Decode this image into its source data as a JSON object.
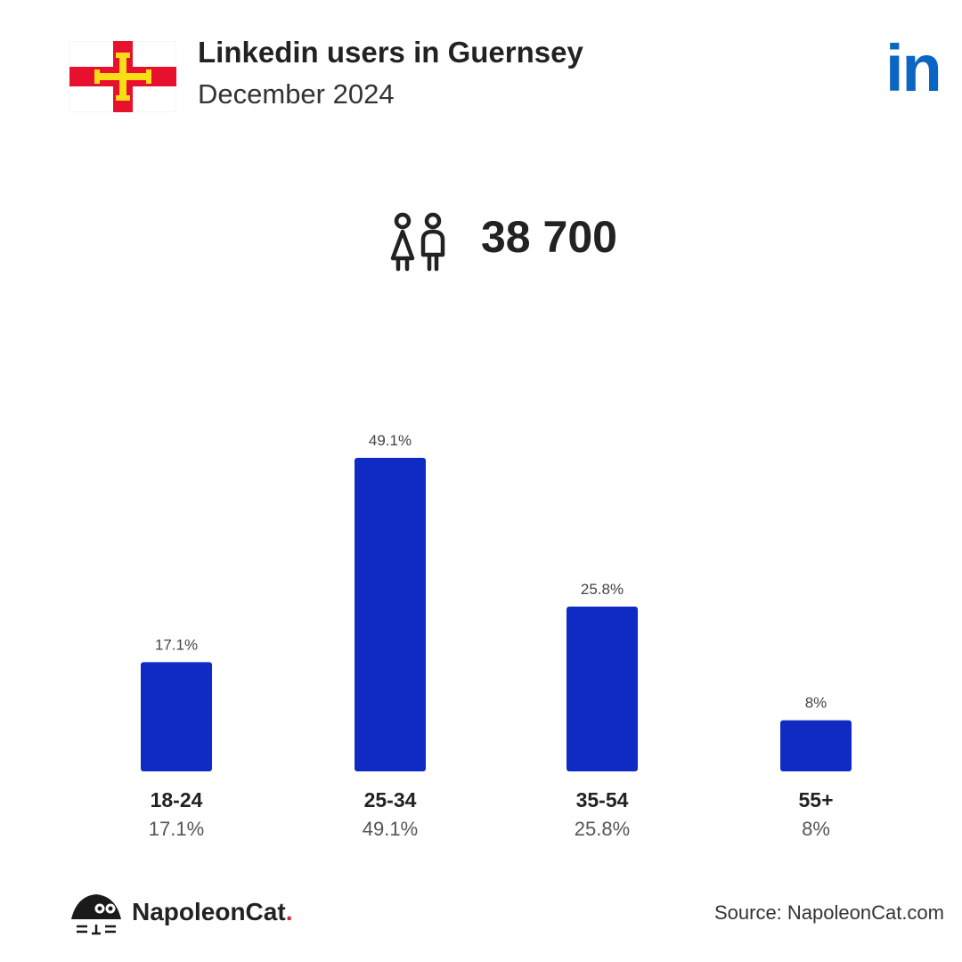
{
  "header": {
    "title": "Linkedin users in Guernsey",
    "subtitle": "December 2024",
    "flag_icon": "guernsey-flag-icon",
    "brand_logo": "in",
    "brand_icon": "linkedin-logo-icon"
  },
  "summary": {
    "icon": "users-icon",
    "total": "38 700"
  },
  "colors": {
    "bar": "#0f2bc4",
    "linkedin_blue": "#0a66c2",
    "flag_red": "#e8112d",
    "flag_gold": "#f9dd16"
  },
  "chart_data": {
    "type": "bar",
    "title": "",
    "xlabel": "",
    "ylabel": "",
    "categories": [
      "18-24",
      "25-34",
      "35-54",
      "55+"
    ],
    "values": [
      17.1,
      49.1,
      25.8,
      8
    ],
    "value_labels": [
      "17.1%",
      "49.1%",
      "25.8%",
      "8%"
    ],
    "ylim": [
      0,
      49.1
    ],
    "grid": false
  },
  "footer": {
    "brand_name": "NapoleonCat",
    "brand_dot": ".",
    "brand_icon": "napoleoncat-logo-icon",
    "source": "Source: NapoleonCat.com"
  }
}
